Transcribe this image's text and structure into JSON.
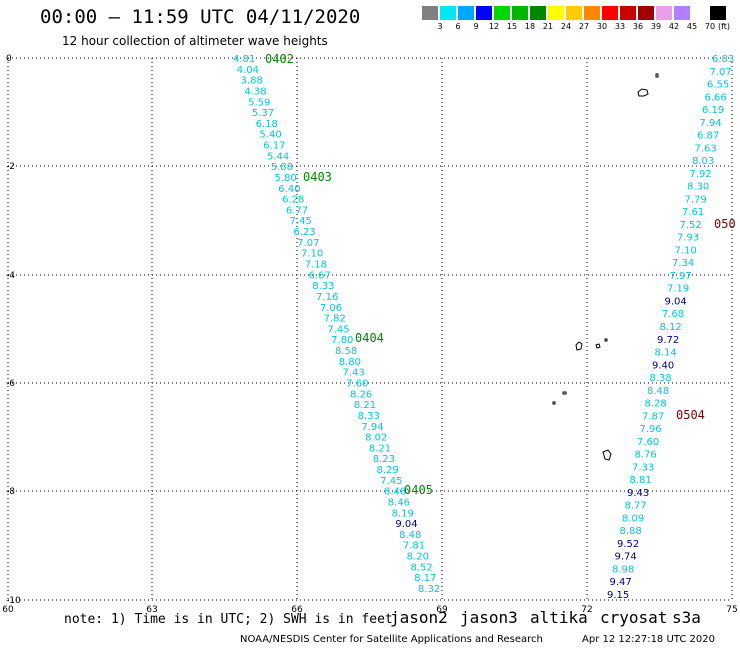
{
  "header": {
    "title": "00:00 – 11:59 UTC 04/11/2020",
    "subtitle": "12 hour collection of altimeter wave heights"
  },
  "colorbar": {
    "colors": [
      "#808080",
      "#00e8f0",
      "#00a8ff",
      "#0000ff",
      "#00d800",
      "#00b800",
      "#008800",
      "#ffff00",
      "#ffcc00",
      "#ff8800",
      "#ff0000",
      "#c80000",
      "#a00000",
      "#e8a0e8",
      "#b080ff",
      "#ffffff",
      "#000000"
    ],
    "labels": [
      "3",
      "6",
      "9",
      "12",
      "15",
      "18",
      "21",
      "24",
      "27",
      "30",
      "33",
      "36",
      "39",
      "42",
      "45",
      "70"
    ],
    "unit": "(ft)"
  },
  "axes": {
    "x_labels": [
      "60",
      "63",
      "66",
      "69",
      "72",
      "75"
    ],
    "y_labels": [
      "0",
      "-2",
      "-4",
      "-6",
      "-8",
      "-10"
    ]
  },
  "tracks": [
    {
      "name": "track-west",
      "color": "#00c8e0",
      "values": [
        "4.81",
        "4.04",
        "3.88",
        "4.38",
        "5.59",
        "5.37",
        "6.18",
        "5.40",
        "6.17",
        "5.44",
        "5.88",
        "5.80",
        "6.40",
        "6.28",
        "6.77",
        "7.45",
        "6.23",
        "7.07",
        "7.10",
        "7.18",
        "6.67",
        "8.33",
        "7.16",
        "7.06",
        "7.82",
        "7.45",
        "7.80",
        "8.58",
        "8.80",
        "7.43",
        "7.60",
        "8.26",
        "8.21",
        "8.33",
        "7.94",
        "8.02",
        "8.21",
        "8.23",
        "8.29",
        "7.45",
        "8.48",
        "8.46",
        "8.19",
        "9.04",
        "8.48",
        "7.81",
        "8.20",
        "8.52",
        "8.17",
        "8.32"
      ],
      "dark": [
        43
      ]
    },
    {
      "name": "track-east",
      "color": "#00c8e0",
      "values": [
        "6.83",
        "7.07",
        "6.55",
        "6.66",
        "6.19",
        "7.94",
        "6.87",
        "7.63",
        "8.03",
        "7.92",
        "8.30",
        "7.79",
        "7.61",
        "7.52",
        "7.93",
        "7.10",
        "7.34",
        "7.97",
        "7.19",
        "9.04",
        "7.68",
        "8.12",
        "9.72",
        "8.14",
        "9.40",
        "8.38",
        "8.48",
        "8.28",
        "7.87",
        "7.96",
        "7.60",
        "8.76",
        "7.33",
        "8.81",
        "9.43",
        "8.77",
        "8.09",
        "8.88",
        "9.52",
        "9.74",
        "8.98",
        "9.47",
        "9.15"
      ],
      "dark": [
        19,
        22,
        24,
        34,
        38,
        39,
        41,
        42
      ]
    }
  ],
  "time_labels": [
    {
      "text": "0402",
      "color": "#008800"
    },
    {
      "text": "0403",
      "color": "#008800"
    },
    {
      "text": "0404",
      "color": "#008800"
    },
    {
      "text": "0405",
      "color": "#008800"
    },
    {
      "text": "0504",
      "color": "#800000"
    },
    {
      "text": "050",
      "color": "#800000"
    }
  ],
  "footer": {
    "note": "note:  1) Time is in UTC;  2) SWH is in feet",
    "satellites": [
      {
        "name": "jason2",
        "color": "#0000cc"
      },
      {
        "name": "jason3",
        "color": "#008800"
      },
      {
        "name": "altika",
        "color": "#ff8800"
      },
      {
        "name": "cryosat",
        "color": "#ff0000"
      },
      {
        "name": "s3a",
        "color": "#800000"
      }
    ],
    "credit": "NOAA/NESDIS Center for Satellite Applications and Research",
    "timestamp": "Apr 12 12:27:18 UTC 2020"
  }
}
